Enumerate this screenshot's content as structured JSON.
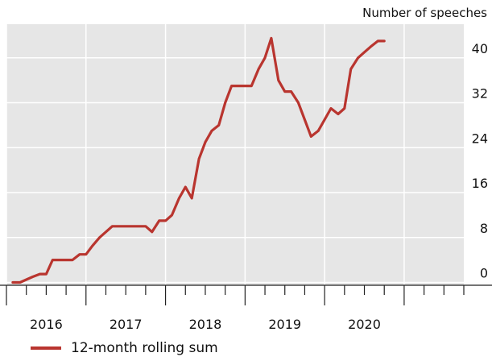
{
  "chart_data": {
    "type": "line",
    "unit_label": "Number of speeches",
    "x_tick_labels": [
      "2016",
      "2017",
      "2018",
      "2019",
      "2020"
    ],
    "y_ticks": [
      0,
      8,
      16,
      24,
      32,
      40
    ],
    "ylim": [
      -0.5,
      46
    ],
    "xlim": [
      2015.0,
      2020.75
    ],
    "grid": true,
    "legend_position": "bottom-left",
    "series": [
      {
        "name": "12-month rolling sum",
        "color": "#b9352f",
        "points": [
          [
            2015.08,
            0
          ],
          [
            2015.17,
            0
          ],
          [
            2015.25,
            0.5
          ],
          [
            2015.33,
            1
          ],
          [
            2015.42,
            1.5
          ],
          [
            2015.5,
            1.5
          ],
          [
            2015.58,
            4
          ],
          [
            2015.67,
            4
          ],
          [
            2015.75,
            4
          ],
          [
            2015.83,
            4
          ],
          [
            2015.92,
            5
          ],
          [
            2016.0,
            5
          ],
          [
            2016.08,
            6.5
          ],
          [
            2016.17,
            8
          ],
          [
            2016.25,
            9
          ],
          [
            2016.33,
            10
          ],
          [
            2016.42,
            10
          ],
          [
            2016.5,
            10
          ],
          [
            2016.58,
            10
          ],
          [
            2016.67,
            10
          ],
          [
            2016.75,
            10
          ],
          [
            2016.83,
            9
          ],
          [
            2016.92,
            11
          ],
          [
            2017.0,
            11
          ],
          [
            2017.08,
            12
          ],
          [
            2017.17,
            15
          ],
          [
            2017.25,
            17
          ],
          [
            2017.33,
            15
          ],
          [
            2017.42,
            22
          ],
          [
            2017.5,
            25
          ],
          [
            2017.58,
            27
          ],
          [
            2017.67,
            28
          ],
          [
            2017.75,
            32
          ],
          [
            2017.83,
            35
          ],
          [
            2017.92,
            35
          ],
          [
            2018.0,
            35
          ],
          [
            2018.08,
            35
          ],
          [
            2018.17,
            38
          ],
          [
            2018.25,
            40
          ],
          [
            2018.33,
            43.5
          ],
          [
            2018.42,
            36
          ],
          [
            2018.5,
            34
          ],
          [
            2018.58,
            34
          ],
          [
            2018.67,
            32
          ],
          [
            2018.75,
            29
          ],
          [
            2018.83,
            26
          ],
          [
            2018.92,
            27
          ],
          [
            2019.0,
            29
          ],
          [
            2019.08,
            31
          ],
          [
            2019.17,
            30
          ],
          [
            2019.25,
            31
          ],
          [
            2019.33,
            38
          ],
          [
            2019.42,
            40
          ],
          [
            2019.5,
            41
          ],
          [
            2019.58,
            42
          ],
          [
            2019.67,
            43
          ],
          [
            2019.75,
            43
          ]
        ]
      }
    ]
  }
}
